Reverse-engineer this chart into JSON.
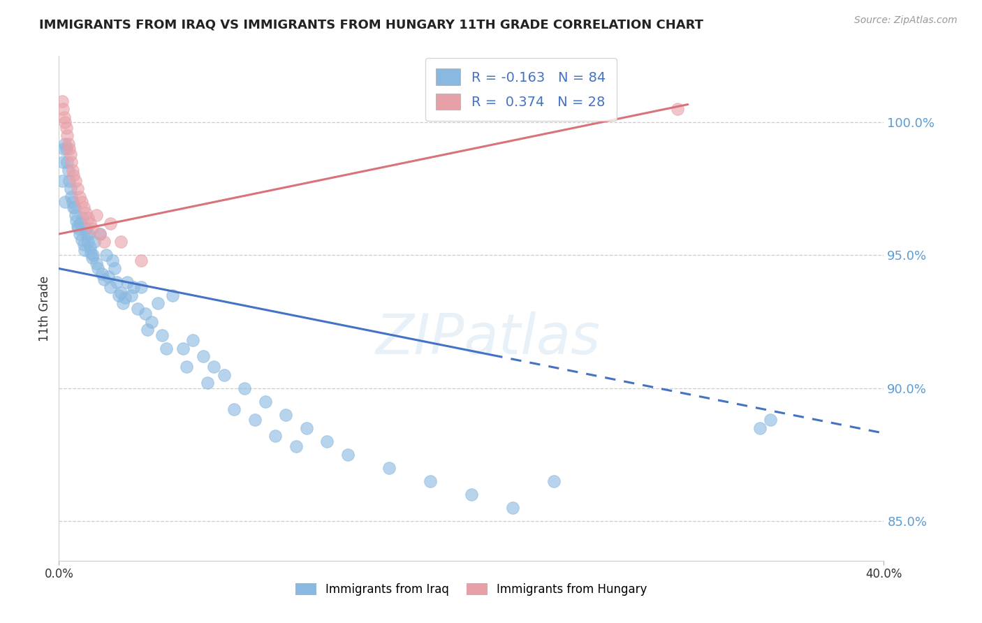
{
  "title": "IMMIGRANTS FROM IRAQ VS IMMIGRANTS FROM HUNGARY 11TH GRADE CORRELATION CHART",
  "source": "Source: ZipAtlas.com",
  "ylabel": "11th Grade",
  "ytick_vals": [
    85.0,
    90.0,
    95.0,
    100.0
  ],
  "ytick_labels": [
    "85.0%",
    "90.0%",
    "95.0%",
    "100.0%"
  ],
  "xlim": [
    0.0,
    40.0
  ],
  "ylim": [
    83.5,
    102.5
  ],
  "r_iraq": -0.163,
  "n_iraq": 84,
  "r_hungary": 0.374,
  "n_hungary": 28,
  "color_iraq": "#89b8e0",
  "color_hungary": "#e8a0a8",
  "trendline_iraq": "#4472c4",
  "trendline_hungary": "#d9727a",
  "legend_iraq": "Immigrants from Iraq",
  "legend_hungary": "Immigrants from Hungary",
  "watermark": "ZIPatlas",
  "iraq_intercept": 94.5,
  "iraq_slope": -0.155,
  "hungary_intercept": 95.8,
  "hungary_slope": 0.16,
  "iraq_x": [
    0.15,
    0.18,
    0.22,
    0.28,
    0.35,
    0.4,
    0.45,
    0.5,
    0.55,
    0.6,
    0.65,
    0.7,
    0.8,
    0.85,
    0.9,
    0.95,
    1.0,
    1.05,
    1.1,
    1.15,
    1.2,
    1.25,
    1.3,
    1.35,
    1.4,
    1.5,
    1.55,
    1.6,
    1.7,
    1.8,
    1.9,
    2.0,
    2.1,
    2.2,
    2.3,
    2.5,
    2.7,
    2.9,
    3.1,
    3.3,
    3.5,
    3.8,
    4.0,
    4.2,
    4.5,
    4.8,
    5.0,
    5.5,
    6.0,
    6.5,
    7.0,
    7.5,
    8.0,
    9.0,
    10.0,
    11.0,
    12.0,
    13.0,
    14.0,
    16.0,
    18.0,
    20.0,
    22.0,
    24.0,
    0.3,
    0.75,
    1.45,
    1.65,
    2.4,
    2.6,
    2.8,
    3.0,
    3.2,
    3.6,
    4.3,
    5.2,
    6.2,
    7.2,
    8.5,
    9.5,
    10.5,
    11.5,
    34.0,
    34.5
  ],
  "iraq_y": [
    97.8,
    98.5,
    99.0,
    99.2,
    99.0,
    98.5,
    98.2,
    97.8,
    97.5,
    97.2,
    97.0,
    96.8,
    96.5,
    96.3,
    96.1,
    96.0,
    95.8,
    96.2,
    95.6,
    96.4,
    95.4,
    95.2,
    96.0,
    95.8,
    95.5,
    95.3,
    95.1,
    94.9,
    95.5,
    94.7,
    94.5,
    95.8,
    94.3,
    94.1,
    95.0,
    93.8,
    94.5,
    93.5,
    93.2,
    94.0,
    93.5,
    93.0,
    93.8,
    92.8,
    92.5,
    93.2,
    92.0,
    93.5,
    91.5,
    91.8,
    91.2,
    90.8,
    90.5,
    90.0,
    89.5,
    89.0,
    88.5,
    88.0,
    87.5,
    87.0,
    86.5,
    86.0,
    85.5,
    86.5,
    97.0,
    96.8,
    95.8,
    95.0,
    94.2,
    94.8,
    94.0,
    93.6,
    93.4,
    93.8,
    92.2,
    91.5,
    90.8,
    90.2,
    89.2,
    88.8,
    88.2,
    87.8,
    88.5,
    88.8
  ],
  "hungary_x": [
    0.15,
    0.2,
    0.25,
    0.3,
    0.35,
    0.4,
    0.45,
    0.5,
    0.55,
    0.6,
    0.65,
    0.7,
    0.8,
    0.9,
    1.0,
    1.1,
    1.2,
    1.3,
    1.4,
    1.5,
    1.6,
    1.8,
    2.0,
    2.2,
    2.5,
    3.0,
    4.0,
    30.0
  ],
  "hungary_y": [
    100.8,
    100.5,
    100.2,
    100.0,
    99.8,
    99.5,
    99.2,
    99.0,
    98.8,
    98.5,
    98.2,
    98.0,
    97.8,
    97.5,
    97.2,
    97.0,
    96.8,
    96.6,
    96.4,
    96.2,
    96.0,
    96.5,
    95.8,
    95.5,
    96.2,
    95.5,
    94.8,
    100.5
  ]
}
